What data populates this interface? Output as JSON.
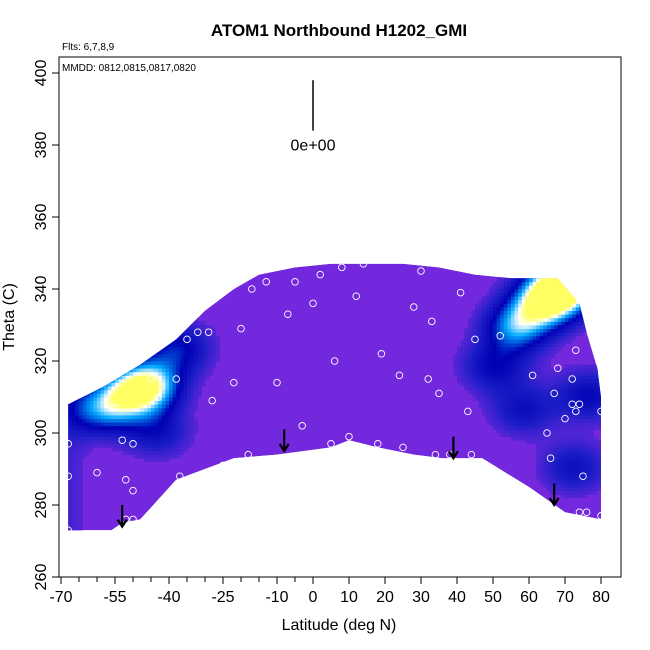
{
  "chart_data": {
    "type": "heatmap",
    "title": "ATOM1 Northbound H1202_GMI",
    "xlabel": "Latitude (deg N)",
    "ylabel": "Theta (C)",
    "xlim": [
      -70,
      80
    ],
    "ylim": [
      260,
      400
    ],
    "x_ticks": [
      -70,
      -55,
      -40,
      -25,
      -10,
      0,
      10,
      20,
      30,
      40,
      50,
      60,
      70,
      80
    ],
    "x_ticklabels": [
      "-70",
      "-55",
      "-40",
      "-25",
      "-10",
      "0",
      "10",
      "20",
      "30",
      "40",
      "50",
      "60",
      "70",
      "80"
    ],
    "x_minor_ticks": [
      -65,
      -60,
      -50,
      -45,
      -35,
      -30,
      -20,
      -15,
      -5
    ],
    "y_ticks": [
      260,
      280,
      300,
      320,
      340,
      360,
      380,
      400
    ],
    "y_ticklabels": [
      "260",
      "280",
      "300",
      "320",
      "340",
      "360",
      "380",
      "400"
    ],
    "annotations": {
      "flights": "Flts: 6,7,8,9",
      "dates": "MMDD: 0812,0815,0817,0820",
      "scale_label": "0e+00"
    },
    "scale_bar": {
      "x": 0,
      "y_bottom": 384,
      "y_top": 398
    },
    "field": {
      "colormap": [
        "#8a2be2",
        "#1e1ec8",
        "#0000b4",
        "#00aaff",
        "#ffffff",
        "#ffff64"
      ],
      "lower_boundary": [
        [
          -68,
          273
        ],
        [
          -56,
          273
        ],
        [
          -53,
          275
        ],
        [
          -48,
          276
        ],
        [
          -38,
          287
        ],
        [
          -30,
          290
        ],
        [
          -22,
          293
        ],
        [
          -10,
          294
        ],
        [
          5,
          296
        ],
        [
          10,
          298
        ],
        [
          18,
          296
        ],
        [
          28,
          294
        ],
        [
          36,
          293
        ],
        [
          47,
          293
        ],
        [
          60,
          285
        ],
        [
          70,
          278
        ],
        [
          80,
          276
        ]
      ],
      "upper_boundary": [
        [
          -68,
          308
        ],
        [
          -58,
          313
        ],
        [
          -48,
          319
        ],
        [
          -38,
          326
        ],
        [
          -30,
          334
        ],
        [
          -22,
          340
        ],
        [
          -15,
          344
        ],
        [
          -5,
          346
        ],
        [
          5,
          347
        ],
        [
          15,
          347
        ],
        [
          25,
          347
        ],
        [
          35,
          346
        ],
        [
          45,
          344
        ],
        [
          55,
          343
        ],
        [
          68,
          343
        ],
        [
          74,
          336
        ],
        [
          76,
          328
        ],
        [
          79,
          318
        ],
        [
          80,
          310
        ]
      ],
      "anomalies": [
        {
          "lat": -46,
          "theta": 313,
          "value": 0.75
        },
        {
          "lat": -52,
          "theta": 310,
          "value": 0.55
        },
        {
          "lat": -38,
          "theta": 323,
          "value": 0.4
        },
        {
          "lat": -60,
          "theta": 306,
          "value": 0.5
        },
        {
          "lat": -44,
          "theta": 300,
          "value": 0.3
        },
        {
          "lat": 70,
          "theta": 341,
          "value": 1.0
        },
        {
          "lat": 64,
          "theta": 336,
          "value": 0.85
        },
        {
          "lat": 56,
          "theta": 329,
          "value": 0.6
        },
        {
          "lat": 50,
          "theta": 318,
          "value": 0.35
        },
        {
          "lat": 58,
          "theta": 306,
          "value": 0.3
        },
        {
          "lat": 76,
          "theta": 310,
          "value": 0.35
        },
        {
          "lat": 72,
          "theta": 290,
          "value": 0.3
        }
      ]
    },
    "points": [
      [
        -68,
        297
      ],
      [
        -68,
        288
      ],
      [
        -68,
        273
      ],
      [
        -60,
        289
      ],
      [
        -55,
        307
      ],
      [
        -53,
        298
      ],
      [
        -50,
        297
      ],
      [
        -50,
        276
      ],
      [
        -52,
        276
      ],
      [
        -52,
        287
      ],
      [
        -50,
        284
      ],
      [
        -45,
        315
      ],
      [
        -43,
        310
      ],
      [
        -38,
        315
      ],
      [
        -37,
        288
      ],
      [
        -35,
        326
      ],
      [
        -32,
        328
      ],
      [
        -29,
        328
      ],
      [
        -28,
        309
      ],
      [
        -25,
        291
      ],
      [
        -22,
        314
      ],
      [
        -20,
        329
      ],
      [
        -18,
        294
      ],
      [
        -17,
        340
      ],
      [
        -13,
        342
      ],
      [
        -10,
        314
      ],
      [
        -7,
        333
      ],
      [
        -5,
        342
      ],
      [
        -3,
        302
      ],
      [
        0,
        336
      ],
      [
        2,
        344
      ],
      [
        5,
        297
      ],
      [
        6,
        320
      ],
      [
        8,
        346
      ],
      [
        10,
        299
      ],
      [
        12,
        338
      ],
      [
        14,
        347
      ],
      [
        18,
        297
      ],
      [
        19,
        322
      ],
      [
        24,
        316
      ],
      [
        25,
        296
      ],
      [
        28,
        335
      ],
      [
        30,
        345
      ],
      [
        32,
        315
      ],
      [
        33,
        331
      ],
      [
        34,
        294
      ],
      [
        35,
        311
      ],
      [
        38,
        294
      ],
      [
        41,
        339
      ],
      [
        43,
        306
      ],
      [
        44,
        294
      ],
      [
        45,
        326
      ],
      [
        52,
        327
      ],
      [
        61,
        316
      ],
      [
        65,
        300
      ],
      [
        66,
        293
      ],
      [
        67,
        311
      ],
      [
        68,
        318
      ],
      [
        70,
        304
      ],
      [
        72,
        315
      ],
      [
        72,
        308
      ],
      [
        73,
        306
      ],
      [
        74,
        308
      ],
      [
        73,
        323
      ],
      [
        74,
        278
      ],
      [
        76,
        278
      ],
      [
        75,
        288
      ],
      [
        80,
        306
      ],
      [
        80,
        277
      ]
    ],
    "arrows": [
      {
        "lat": -53,
        "theta_top": 280,
        "theta_bottom": 274
      },
      {
        "lat": -8,
        "theta_top": 301,
        "theta_bottom": 295
      },
      {
        "lat": 39,
        "theta_top": 299,
        "theta_bottom": 293
      },
      {
        "lat": 67,
        "theta_top": 286,
        "theta_bottom": 280
      }
    ]
  }
}
